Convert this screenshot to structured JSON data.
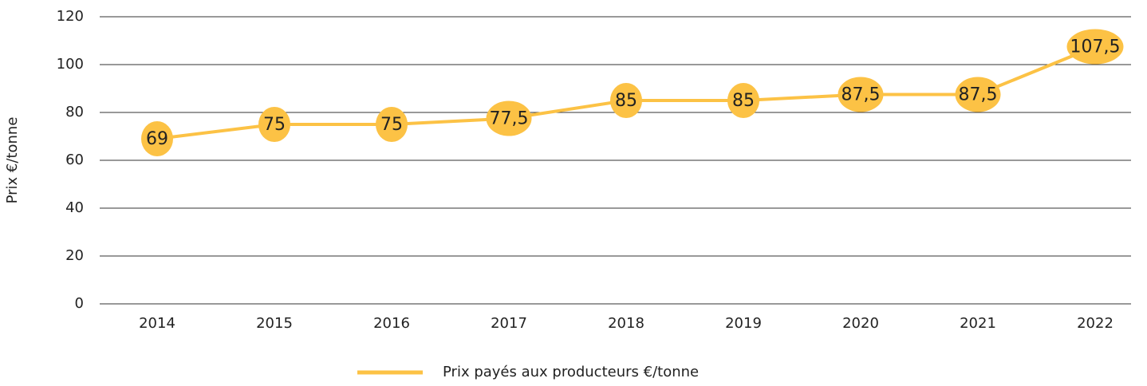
{
  "chart_data": {
    "type": "line",
    "y_axis_label": "Prix €/tonne",
    "categories": [
      "2014",
      "2015",
      "2016",
      "2017",
      "2018",
      "2019",
      "2020",
      "2021",
      "2022"
    ],
    "series": [
      {
        "name": "Prix payés aux producteurs €/tonne",
        "color": "#fcc245",
        "values": [
          69,
          75,
          75,
          77.5,
          85,
          85,
          87.5,
          87.5,
          107.5
        ],
        "value_labels": [
          "69",
          "75",
          "75",
          "77,5",
          "85",
          "85",
          "87,5",
          "87,5",
          "107,5"
        ]
      }
    ],
    "ylim": [
      0,
      120
    ],
    "yticks": [
      0,
      20,
      40,
      60,
      80,
      100,
      120
    ],
    "grid": true,
    "legend": "bottom"
  }
}
